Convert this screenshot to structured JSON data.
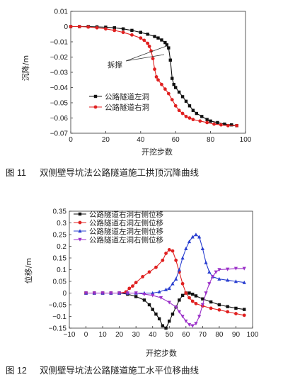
{
  "chart_data": [
    {
      "type": "line",
      "ylabel": "沉降/m",
      "xlabel": "开挖步数",
      "xlim": [
        0,
        100
      ],
      "ylim": [
        -0.07,
        0.01
      ],
      "xticks": [
        0,
        20,
        40,
        60,
        80,
        100
      ],
      "yticks": [
        0.01,
        0,
        -0.01,
        -0.02,
        -0.03,
        -0.04,
        -0.05,
        -0.06,
        -0.07
      ],
      "annotation": "拆撑",
      "caption": {
        "number": "图 11",
        "text": "双侧壁导坑法公路隧道施工拱顶沉降曲线"
      },
      "legend_position": "lower-left",
      "series": [
        {
          "name": "公路隧道左洞",
          "color": "#111111",
          "marker": "square",
          "x": [
            0,
            5,
            10,
            15,
            20,
            25,
            30,
            35,
            40,
            44,
            48,
            50,
            52,
            54,
            55,
            56,
            57,
            58,
            59,
            60,
            62,
            64,
            66,
            68,
            70,
            72,
            75,
            78,
            80,
            84,
            88,
            92,
            95
          ],
          "y": [
            0,
            0,
            0,
            -0.0002,
            -0.0004,
            -0.0008,
            -0.0015,
            -0.0025,
            -0.0038,
            -0.005,
            -0.0065,
            -0.0075,
            -0.0088,
            -0.0105,
            -0.012,
            -0.014,
            -0.022,
            -0.034,
            -0.038,
            -0.04,
            -0.043,
            -0.046,
            -0.049,
            -0.052,
            -0.055,
            -0.057,
            -0.059,
            -0.061,
            -0.062,
            -0.063,
            -0.064,
            -0.0645,
            -0.065
          ]
        },
        {
          "name": "公路隧道右洞",
          "color": "#e02020",
          "marker": "circle",
          "x": [
            0,
            5,
            10,
            15,
            20,
            25,
            30,
            35,
            40,
            42,
            44,
            45,
            46,
            47,
            48,
            49,
            50,
            52,
            54,
            56,
            58,
            60,
            62,
            64,
            66,
            68,
            70,
            74,
            78,
            82,
            86,
            90,
            95
          ],
          "y": [
            0,
            0,
            -0.0003,
            -0.0008,
            -0.0015,
            -0.0025,
            -0.0038,
            -0.0055,
            -0.0075,
            -0.009,
            -0.011,
            -0.013,
            -0.016,
            -0.021,
            -0.028,
            -0.033,
            -0.035,
            -0.038,
            -0.041,
            -0.044,
            -0.048,
            -0.052,
            -0.055,
            -0.057,
            -0.059,
            -0.06,
            -0.061,
            -0.062,
            -0.063,
            -0.064,
            -0.0645,
            -0.065,
            -0.065
          ]
        }
      ]
    },
    {
      "type": "line",
      "ylabel": "位移/m",
      "xlabel": "开挖步数",
      "xlim": [
        -10,
        100
      ],
      "ylim": [
        -0.15,
        0.35
      ],
      "xticks": [
        -10,
        0,
        10,
        20,
        30,
        40,
        50,
        60,
        70,
        80,
        90,
        100
      ],
      "yticks": [
        0.35,
        0.3,
        0.25,
        0.2,
        0.15,
        0.1,
        0.05,
        0,
        -0.05,
        -0.1,
        -0.15
      ],
      "caption": {
        "number": "图 12",
        "text": "双侧壁导坑法公路隧道施工水平位移曲线"
      },
      "legend_position": "top-left",
      "series": [
        {
          "name": "公路隧道右洞右侧位移",
          "color": "#111111",
          "marker": "square",
          "x": [
            0,
            5,
            10,
            15,
            20,
            25,
            30,
            35,
            38,
            40,
            42,
            44,
            46,
            48,
            50,
            52,
            54,
            56,
            58,
            60,
            62,
            64,
            66,
            70,
            75,
            80,
            85,
            90,
            95
          ],
          "y": [
            0,
            0,
            0,
            0,
            0,
            -0.005,
            -0.015,
            -0.03,
            -0.05,
            -0.07,
            -0.09,
            -0.11,
            -0.14,
            -0.15,
            -0.12,
            -0.09,
            -0.06,
            -0.03,
            -0.01,
            0,
            0,
            -0.005,
            -0.012,
            -0.025,
            -0.038,
            -0.05,
            -0.058,
            -0.065,
            -0.07
          ]
        },
        {
          "name": "公路隧道右洞左侧位移",
          "color": "#e02020",
          "marker": "circle",
          "x": [
            0,
            5,
            10,
            15,
            20,
            24,
            26,
            28,
            30,
            34,
            38,
            42,
            46,
            48,
            50,
            52,
            54,
            56,
            58,
            60,
            62,
            64,
            66,
            70,
            75,
            80,
            85,
            90,
            95
          ],
          "y": [
            0,
            0,
            0,
            0,
            0,
            0.005,
            0.02,
            0.03,
            0.045,
            0.07,
            0.09,
            0.11,
            0.14,
            0.17,
            0.185,
            0.18,
            0.14,
            0.09,
            0.04,
            0.0,
            -0.02,
            -0.035,
            -0.045,
            -0.055,
            -0.065,
            -0.072,
            -0.08,
            -0.088,
            -0.095
          ]
        },
        {
          "name": "公路隧道左洞左侧位移",
          "color": "#2a3fd0",
          "marker": "triangle",
          "x": [
            0,
            5,
            10,
            15,
            20,
            25,
            30,
            35,
            40,
            44,
            48,
            50,
            52,
            54,
            56,
            58,
            60,
            62,
            64,
            66,
            68,
            70,
            72,
            74,
            76,
            80,
            85,
            90,
            95
          ],
          "y": [
            0,
            0,
            0,
            0,
            0,
            0,
            0,
            0,
            0,
            0.005,
            0.015,
            0.02,
            0.04,
            0.06,
            0.1,
            0.15,
            0.19,
            0.22,
            0.24,
            0.25,
            0.24,
            0.19,
            0.13,
            0.09,
            0.07,
            0.06,
            0.055,
            0.05,
            0.045
          ]
        },
        {
          "name": "公路隧道左洞右侧位移",
          "color": "#9b30c8",
          "marker": "triangle-down",
          "x": [
            0,
            5,
            10,
            15,
            20,
            25,
            30,
            35,
            40,
            45,
            50,
            54,
            56,
            58,
            60,
            62,
            64,
            66,
            68,
            70,
            72,
            74,
            76,
            78,
            80,
            85,
            90,
            95
          ],
          "y": [
            0,
            0,
            0,
            0,
            0,
            0,
            0,
            -0.005,
            -0.01,
            -0.02,
            -0.04,
            -0.06,
            -0.08,
            -0.1,
            -0.12,
            -0.135,
            -0.14,
            -0.13,
            -0.1,
            -0.05,
            0,
            0.04,
            0.07,
            0.09,
            0.1,
            0.102,
            0.105,
            0.105
          ]
        }
      ]
    }
  ]
}
